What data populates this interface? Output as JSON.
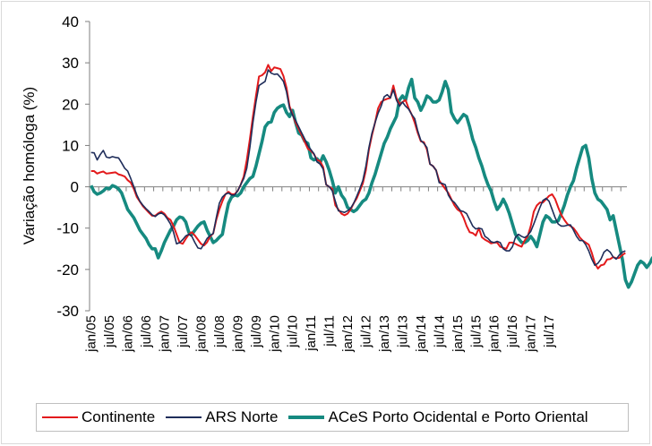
{
  "chart_data": {
    "type": "line",
    "title": "",
    "xlabel": "",
    "ylabel": "Variação homóloga (%)",
    "ylim": [
      -30,
      40
    ],
    "yticks": [
      40,
      30,
      20,
      10,
      0,
      -10,
      -20,
      -30
    ],
    "xtick_labels": [
      "jan/05",
      "jul/05",
      "jan/06",
      "jul/06",
      "jan/07",
      "jul/07",
      "jan/08",
      "jul/08",
      "jan/09",
      "jul/09",
      "jan/10",
      "jul/10",
      "jan/11",
      "jul/11",
      "jan/12",
      "jul/12",
      "jan/13",
      "jul/13",
      "jan/14",
      "jul/14",
      "jan/15",
      "jul/15",
      "jan/16",
      "jul/16",
      "jan/17",
      "jul/17"
    ],
    "x_range": [
      "jan/05",
      "dez/17"
    ],
    "legend_position": "bottom",
    "grid": false,
    "series": [
      {
        "name": "Continente",
        "color": "#e31a1c",
        "values": [
          3.8,
          3.8,
          3.2,
          3.5,
          3.7,
          3.2,
          3.3,
          3.4,
          3.5,
          3,
          2.8,
          2.5,
          1.6,
          1.0,
          -0.5,
          -2.5,
          -3.6,
          -4.7,
          -5.5,
          -6.3,
          -7.0,
          -7.0,
          -6.4,
          -6.0,
          -6.5,
          -7.5,
          -8.0,
          -9.5,
          -11.5,
          -13.5,
          -13.8,
          -12.6,
          -11.5,
          -11.0,
          -11.8,
          -12.8,
          -13.8,
          -14.2,
          -13.4,
          -12.0,
          -11.3,
          -8.0,
          -5.5,
          -3.5,
          -1.8,
          -1.2,
          -1.8,
          -1.8,
          -1.0,
          0.5,
          2.5,
          6.5,
          11.5,
          17,
          22,
          26.7,
          27.0,
          27.7,
          29.5,
          28.0,
          28.9,
          28.7,
          28.5,
          26.8,
          24.0,
          19.5,
          17.5,
          15.5,
          14.0,
          12.5,
          10.8,
          9.2,
          8.7,
          7.9,
          6.5,
          6.2,
          4.8,
          0.5,
          0.0,
          -0.5,
          -4.5,
          -5.5,
          -6.5,
          -6.9,
          -6.5,
          -5.5,
          -4.0,
          -2.8,
          -1.0,
          0.8,
          4.0,
          9.0,
          12.5,
          15.5,
          19.0,
          20.5,
          21.0,
          21.3,
          21.5,
          24.5,
          21.5,
          20.0,
          20.5,
          21.0,
          19.0,
          17.5,
          15.5,
          13.0,
          11.0,
          10.8,
          9.0,
          5.5,
          5.0,
          4.0,
          1.5,
          0.5,
          -0.5,
          -1.5,
          -3.0,
          -4.5,
          -5.5,
          -6.0,
          -7.5,
          -9.5,
          -11.0,
          -11.2,
          -11.8,
          -10.0,
          -12.2,
          -12.8,
          -13.2,
          -13.7,
          -13.5,
          -13.5,
          -14.5,
          -14.8,
          -15.0,
          -13.5,
          -13.5,
          -13.8,
          -14.2,
          -14.5,
          -13.0,
          -12.0,
          -9.5,
          -6.0,
          -4.5,
          -3.8,
          -3.8,
          -3.0,
          -2.2,
          -1.8,
          -3.0,
          -5.0,
          -6.8,
          -8.0,
          -9.0,
          -9.5,
          -10.0,
          -11.0,
          -12.2,
          -13.0,
          -13.5,
          -14.0,
          -16.0,
          -18.5,
          -19.8,
          -19.0,
          -18.8,
          -17.6,
          -17.5,
          -17.0,
          -17.3,
          -17.2,
          -16.5,
          -16.0
        ]
      },
      {
        "name": "ARS Norte",
        "color": "#1f2d5a",
        "values": [
          8.3,
          8.2,
          6.5,
          7.8,
          8.8,
          7.2,
          7.0,
          7.3,
          7.1,
          7.0,
          5.8,
          4.5,
          3.8,
          2.0,
          0.0,
          -2.0,
          -3.5,
          -4.5,
          -5.3,
          -6.0,
          -6.8,
          -7.2,
          -6.6,
          -6.3,
          -6.8,
          -7.8,
          -9.0,
          -11.0,
          -13.8,
          -13.5,
          -12.8,
          -11.9,
          -11.5,
          -12.0,
          -13.5,
          -14.8,
          -15.0,
          -13.8,
          -12.5,
          -11.8,
          -11.3,
          -7.5,
          -4.0,
          -2.5,
          -1.8,
          -1.5,
          -2.0,
          -2.0,
          -1.0,
          0.5,
          2.0,
          4.5,
          9.5,
          15.5,
          20.5,
          24.5,
          25.0,
          25.5,
          28.3,
          27.5,
          27.2,
          27.3,
          26.5,
          25.5,
          23.0,
          19.0,
          17.3,
          16.0,
          14.5,
          13.0,
          11.5,
          10.0,
          9.0,
          8.0,
          6.0,
          5.5,
          4.3,
          0.5,
          0.0,
          -1.0,
          -3.5,
          -5.8,
          -6.0,
          -6.2,
          -5.8,
          -5.2,
          -4.0,
          -2.3,
          -0.5,
          1.5,
          5.0,
          9.5,
          13.0,
          15.5,
          17.8,
          19.5,
          21.8,
          22.3,
          21.5,
          23.5,
          21.0,
          19.5,
          20.5,
          19.5,
          18.8,
          17.5,
          16.5,
          13.5,
          11.2,
          10.5,
          9.5,
          5.5,
          5.0,
          4.0,
          1.0,
          0.8,
          0.5,
          -2.0,
          -3.2,
          -3.8,
          -4.8,
          -5.8,
          -6.0,
          -6.5,
          -8.0,
          -9.5,
          -10.2,
          -10.0,
          -10.2,
          -12.0,
          -12.5,
          -13.3,
          -13.5,
          -13.2,
          -13.5,
          -15.0,
          -15.5,
          -15.5,
          -14.5,
          -12.2,
          -11.5,
          -12.0,
          -12.3,
          -11.8,
          -10.8,
          -9.0,
          -7.0,
          -5.0,
          -3.3,
          -2.8,
          -3.5,
          -5.5,
          -7.5,
          -9.0,
          -9.5,
          -9.5,
          -9.3,
          -9.2,
          -10.5,
          -12.0,
          -13.0,
          -13.0,
          -14.0,
          -15.5,
          -17.5,
          -19.0,
          -18.5,
          -17.5,
          -15.8,
          -15.2,
          -15.8,
          -17.0,
          -17.5,
          -16.5,
          -15.8,
          -15.5
        ]
      },
      {
        "name": "ACeS Porto Ocidental e Porto Oriental",
        "color": "#168a80",
        "values": [
          0.3,
          -1.2,
          -1.8,
          -1.5,
          -1.0,
          -0.3,
          -0.5,
          0.3,
          0.0,
          -0.5,
          -1.5,
          -3.5,
          -5.5,
          -6.5,
          -7.5,
          -9.0,
          -10.5,
          -11.5,
          -12.5,
          -14.0,
          -15.0,
          -15.0,
          -17.2,
          -15.5,
          -13.5,
          -12.0,
          -10.5,
          -9.5,
          -8.0,
          -7.3,
          -7.5,
          -8.5,
          -11.0,
          -11.5,
          -10.5,
          -9.5,
          -8.8,
          -8.5,
          -10.5,
          -12.0,
          -13.5,
          -13.0,
          -12.2,
          -11.5,
          -7.5,
          -4.0,
          -2.5,
          -2.0,
          -2.2,
          -1.5,
          0.0,
          1.0,
          2.0,
          2.5,
          5.0,
          8.0,
          11.0,
          14.5,
          15.5,
          15.7,
          18.0,
          19.0,
          19.5,
          19.8,
          18.0,
          17.0,
          18.5,
          15.5,
          13.0,
          12.5,
          11.0,
          10.5,
          7.0,
          6.5,
          6.8,
          5.8,
          7.5,
          6.0,
          4.0,
          1.5,
          -1.5,
          0.0,
          -2.0,
          -3.0,
          -5.0,
          -5.5,
          -6.0,
          -5.5,
          -4.5,
          -3.5,
          -3.0,
          -1.5,
          1.0,
          3.0,
          5.5,
          8.0,
          10.5,
          12.0,
          14.0,
          15.5,
          17.0,
          21.0,
          22.0,
          21.0,
          24.0,
          26.0,
          21.5,
          20.5,
          18.5,
          20.0,
          22.0,
          21.5,
          20.5,
          20.5,
          21.0,
          23.0,
          25.5,
          23.5,
          18.0,
          16.5,
          15.5,
          16.5,
          17.5,
          17.0,
          14.5,
          11.5,
          9.5,
          7.0,
          5.0,
          2.5,
          0.5,
          -1.0,
          -3.5,
          -5.5,
          -4.5,
          -3.0,
          -4.5,
          -6.5,
          -9.0,
          -11.5,
          -12.5,
          -13.5,
          -13.5,
          -13.0,
          -12.0,
          -13.0,
          -14.5,
          -11.5,
          -8.5,
          -7.0,
          -7.5,
          -8.5,
          -8.5,
          -8.2,
          -6.5,
          -4.5,
          -2.0,
          0.0,
          1.5,
          4.5,
          7.0,
          9.5,
          10.0,
          7.0,
          2.0,
          -1.5,
          -3.0,
          -3.5,
          -4.5,
          -5.5,
          -8.0,
          -7.0,
          -10.5,
          -14.0,
          -17.5,
          -22.5,
          -24.3,
          -23.0,
          -21.0,
          -19.0,
          -18.0,
          -18.5,
          -19.5,
          -18.5,
          -17.0
        ]
      }
    ]
  }
}
